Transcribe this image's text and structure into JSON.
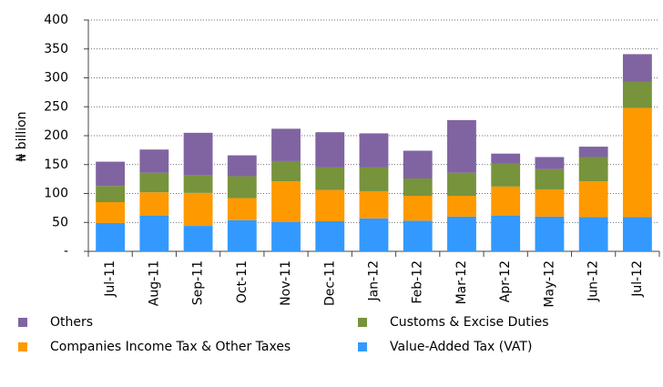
{
  "chart_data": {
    "type": "bar",
    "stacked": true,
    "y_label": "₦ billion",
    "categories": [
      "Jul-11",
      "Aug-11",
      "Sep-11",
      "Oct-11",
      "Nov-11",
      "Dec-11",
      "Jan-12",
      "Feb-12",
      "Mar-12",
      "Apr-12",
      "May-12",
      "Jun-12",
      "Jul-12"
    ],
    "series": [
      {
        "name": "Value-Added Tax (VAT)",
        "color": "#3399ff",
        "values": [
          49,
          62,
          44,
          54,
          51,
          52,
          57,
          53,
          60,
          62,
          60,
          59,
          59
        ]
      },
      {
        "name": "Companies Income Tax & Other Taxes",
        "color": "#ff9900",
        "values": [
          36,
          40,
          57,
          38,
          70,
          54,
          47,
          43,
          36,
          50,
          47,
          62,
          189
        ]
      },
      {
        "name": "Customs & Excise Duties",
        "color": "#77933c",
        "values": [
          28,
          34,
          30,
          38,
          35,
          39,
          41,
          30,
          40,
          40,
          35,
          42,
          45
        ]
      },
      {
        "name": "Others",
        "color": "#8064a2",
        "values": [
          42,
          40,
          74,
          36,
          56,
          61,
          59,
          48,
          91,
          17,
          21,
          18,
          48
        ]
      }
    ],
    "ylim": [
      0,
      400
    ],
    "yticks": [
      {
        "value": 0,
        "label": "-"
      },
      50,
      100,
      150,
      200,
      250,
      300,
      350,
      400
    ],
    "grid": true
  }
}
